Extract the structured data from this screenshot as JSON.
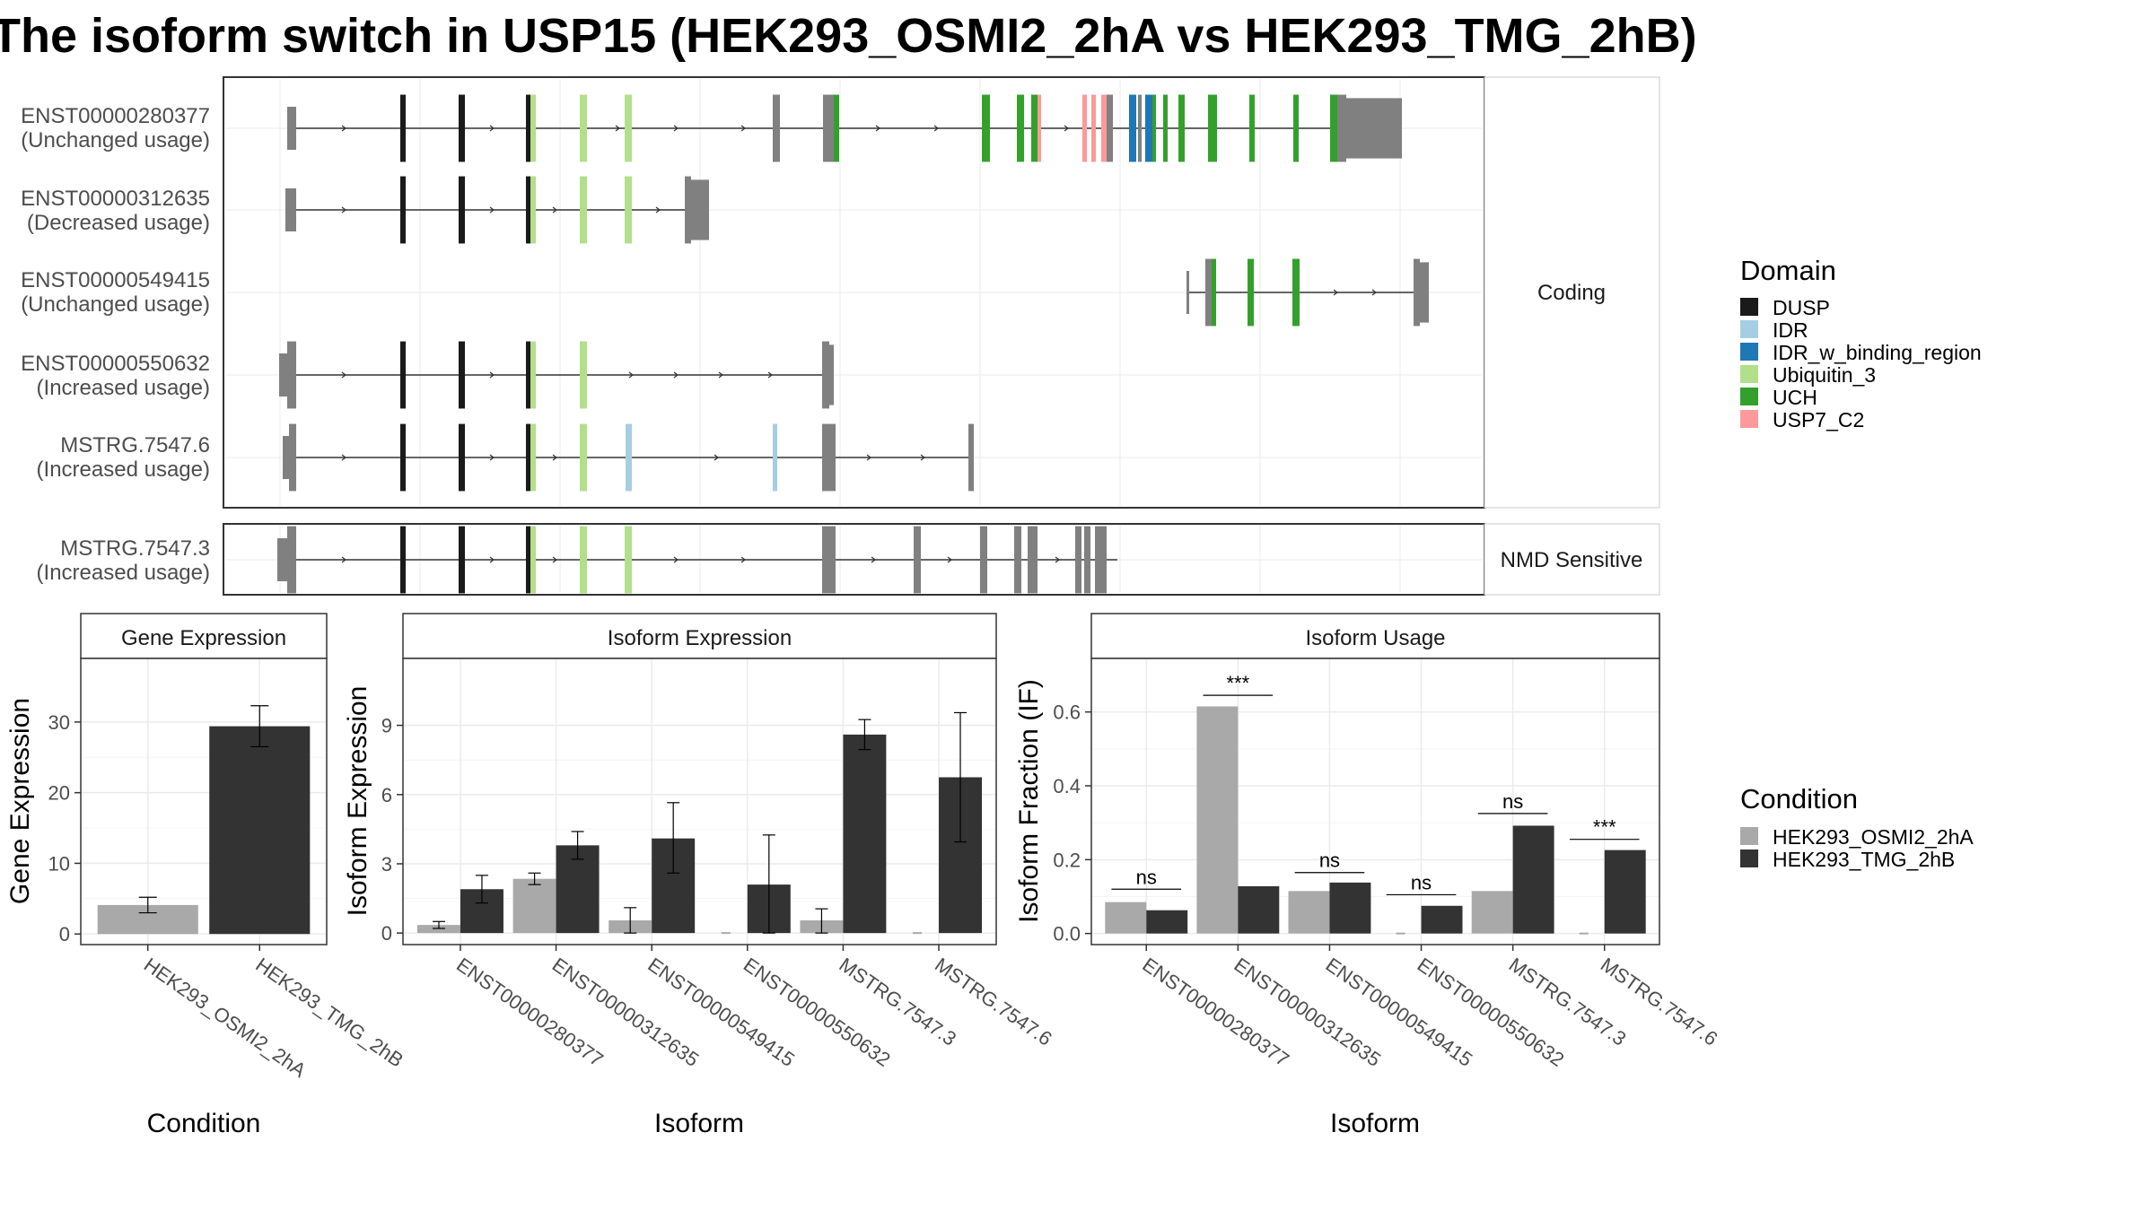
{
  "title": "The isoform switch in USP15 (HEK293_OSMI2_2hA vs HEK293_TMG_2hB)",
  "colors": {
    "DUSP": "#1a1a1a",
    "IDR": "#a6cee3",
    "IDR_w_binding_region": "#1f78b4",
    "Ubiquitin_3": "#b2df8a",
    "UCH": "#33a02c",
    "USP7_C2": "#fb9a99",
    "exon": "#808080",
    "cond_A": "#a9a9a9",
    "cond_B": "#333333"
  },
  "transcripts": {
    "facet_labels": [
      "Coding",
      "NMD Sensitive"
    ],
    "coding": [
      {
        "id": "ENST00000280377",
        "status": "(Unchanged usage)"
      },
      {
        "id": "ENST00000312635",
        "status": "(Decreased usage)"
      },
      {
        "id": "ENST00000549415",
        "status": "(Unchanged usage)"
      },
      {
        "id": "ENST00000550632",
        "status": "(Increased usage)"
      },
      {
        "id": "MSTRG.7547.6",
        "status": "(Increased usage)"
      }
    ],
    "nmd": [
      {
        "id": "MSTRG.7547.3",
        "status": "(Increased usage)"
      }
    ]
  },
  "domain_legend": {
    "title": "Domain",
    "items": [
      {
        "name": "DUSP",
        "color_key": "DUSP"
      },
      {
        "name": "IDR",
        "color_key": "IDR"
      },
      {
        "name": "IDR_w_binding_region",
        "color_key": "IDR_w_binding_region"
      },
      {
        "name": "Ubiquitin_3",
        "color_key": "Ubiquitin_3"
      },
      {
        "name": "UCH",
        "color_key": "UCH"
      },
      {
        "name": "USP7_C2",
        "color_key": "USP7_C2"
      }
    ]
  },
  "condition_legend": {
    "title": "Condition",
    "items": [
      {
        "name": "HEK293_OSMI2_2hA",
        "color_key": "cond_A"
      },
      {
        "name": "HEK293_TMG_2hB",
        "color_key": "cond_B"
      }
    ]
  },
  "chart_data": [
    {
      "type": "bar",
      "title": "Gene Expression",
      "xlabel": "Condition",
      "ylabel": "Gene Expression",
      "categories": [
        "HEK293_OSMI2_2hA",
        "HEK293_TMG_2hB"
      ],
      "values": [
        4.1,
        29.4
      ],
      "errors": [
        [
          3.0,
          5.2
        ],
        [
          26.5,
          32.3
        ]
      ],
      "ylim": [
        -1.5,
        39
      ],
      "yticks": [
        0,
        10,
        20,
        30
      ],
      "grid": true
    },
    {
      "type": "bar",
      "title": "Isoform Expression",
      "xlabel": "Isoform",
      "ylabel": "Isoform Expression",
      "categories": [
        "ENST00000280377",
        "ENST00000312635",
        "ENST00000549415",
        "ENST00000550632",
        "MSTRG.7547.3",
        "MSTRG.7547.6"
      ],
      "series": [
        {
          "name": "HEK293_OSMI2_2hA",
          "values": [
            0.35,
            2.35,
            0.55,
            0.0,
            0.55,
            0.0
          ],
          "errors": [
            [
              0.2,
              0.5
            ],
            [
              2.1,
              2.6
            ],
            [
              0.0,
              1.1
            ],
            [
              0.0,
              0.0
            ],
            [
              0.0,
              1.05
            ],
            [
              0.0,
              0.0
            ]
          ]
        },
        {
          "name": "HEK293_TMG_2hB",
          "values": [
            1.9,
            3.8,
            4.1,
            2.1,
            8.6,
            6.75
          ],
          "errors": [
            [
              1.3,
              2.5
            ],
            [
              3.2,
              4.4
            ],
            [
              2.6,
              5.65
            ],
            [
              0.0,
              4.25
            ],
            [
              7.95,
              9.25
            ],
            [
              3.95,
              9.55
            ]
          ]
        }
      ],
      "ylim": [
        -0.5,
        11.9
      ],
      "yticks": [
        0,
        3,
        6,
        9
      ],
      "grid": true
    },
    {
      "type": "bar",
      "title": "Isoform Usage",
      "xlabel": "Isoform",
      "ylabel": "Isoform Fraction (IF)",
      "categories": [
        "ENST00000280377",
        "ENST00000312635",
        "ENST00000549415",
        "ENST00000550632",
        "MSTRG.7547.3",
        "MSTRG.7547.6"
      ],
      "series": [
        {
          "name": "HEK293_OSMI2_2hA",
          "values": [
            0.085,
            0.615,
            0.115,
            0.0,
            0.115,
            0.0
          ]
        },
        {
          "name": "HEK293_TMG_2hB",
          "values": [
            0.063,
            0.128,
            0.138,
            0.075,
            0.292,
            0.226
          ]
        }
      ],
      "significance": [
        {
          "category": "ENST00000280377",
          "label": "ns",
          "y": 0.12
        },
        {
          "category": "ENST00000312635",
          "label": "***",
          "y": 0.645
        },
        {
          "category": "ENST00000549415",
          "label": "ns",
          "y": 0.165
        },
        {
          "category": "ENST00000550632",
          "label": "ns",
          "y": 0.105
        },
        {
          "category": "MSTRG.7547.3",
          "label": "ns",
          "y": 0.325
        },
        {
          "category": "MSTRG.7547.6",
          "label": "***",
          "y": 0.255
        }
      ],
      "ylim": [
        -0.03,
        0.745
      ],
      "yticks": [
        0.0,
        0.2,
        0.4,
        0.6
      ],
      "yticklabels": [
        "0.0",
        "0.2",
        "0.4",
        "0.6"
      ],
      "grid": true
    }
  ]
}
